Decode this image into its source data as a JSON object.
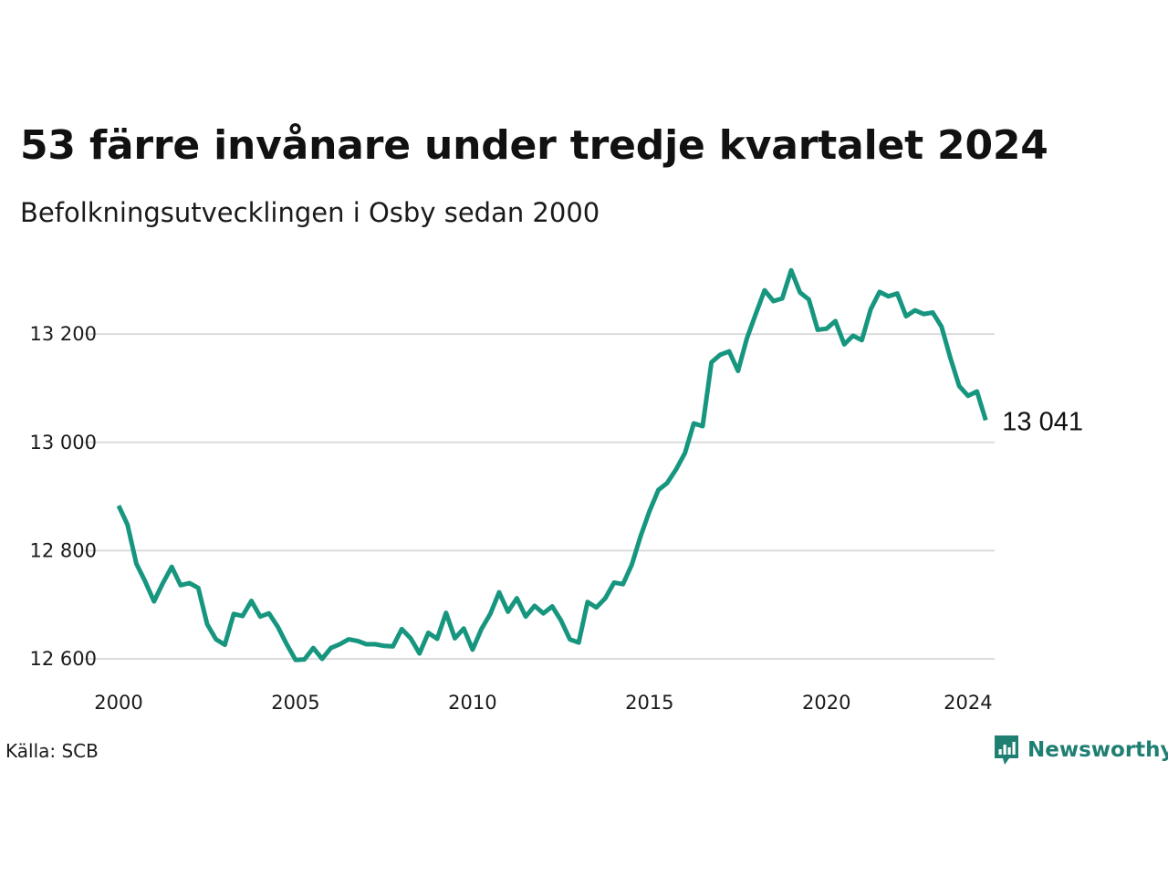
{
  "colors": {
    "line": "#17967f",
    "grid": "#dcdcdc",
    "brand": "#1e7f72"
  },
  "source": "Källa: SCB",
  "brand": {
    "name": "Newsworthy",
    "icon": "newsworthy-logo-icon"
  },
  "chart_data": {
    "type": "line",
    "title": "53 färre invånare under tredje kvartalet 2024",
    "subtitle": "Befolkningsutvecklingen i Osby sedan 2000",
    "xlabel": "",
    "ylabel": "",
    "xlim": [
      2000,
      2024.75
    ],
    "ylim": [
      12600,
      13320
    ],
    "x_ticks": [
      2000,
      2005,
      2010,
      2015,
      2020,
      2024
    ],
    "x_tick_labels": [
      "2000",
      "2005",
      "2010",
      "2015",
      "2020",
      "2024"
    ],
    "y_ticks": [
      12600,
      12800,
      13000,
      13200
    ],
    "y_tick_labels": [
      "12 600",
      "12 800",
      "13 000",
      "13 200"
    ],
    "grid": "horizontal",
    "legend": "none",
    "end_label": "13 041",
    "x": [
      2000.0,
      2000.25,
      2000.5,
      2000.75,
      2001.0,
      2001.25,
      2001.5,
      2001.75,
      2002.0,
      2002.25,
      2002.5,
      2002.75,
      2003.0,
      2003.25,
      2003.5,
      2003.75,
      2004.0,
      2004.25,
      2004.5,
      2004.75,
      2005.0,
      2005.25,
      2005.5,
      2005.75,
      2006.0,
      2006.25,
      2006.5,
      2006.75,
      2007.0,
      2007.25,
      2007.5,
      2007.75,
      2008.0,
      2008.25,
      2008.5,
      2008.75,
      2009.0,
      2009.25,
      2009.5,
      2009.75,
      2010.0,
      2010.25,
      2010.5,
      2010.75,
      2011.0,
      2011.25,
      2011.5,
      2011.75,
      2012.0,
      2012.25,
      2012.5,
      2012.75,
      2013.0,
      2013.25,
      2013.5,
      2013.75,
      2014.0,
      2014.25,
      2014.5,
      2014.75,
      2015.0,
      2015.25,
      2015.5,
      2015.75,
      2016.0,
      2016.25,
      2016.5,
      2016.75,
      2017.0,
      2017.25,
      2017.5,
      2017.75,
      2018.0,
      2018.25,
      2018.5,
      2018.75,
      2019.0,
      2019.25,
      2019.5,
      2019.75,
      2020.0,
      2020.25,
      2020.5,
      2020.75,
      2021.0,
      2021.25,
      2021.5,
      2021.75,
      2022.0,
      2022.25,
      2022.5,
      2022.75,
      2023.0,
      2023.25,
      2023.5,
      2023.75,
      2024.0,
      2024.25,
      2024.5
    ],
    "series": [
      {
        "values": [
          12883,
          12848,
          12776,
          12743,
          12706,
          12740,
          12770,
          12736,
          12740,
          12731,
          12664,
          12636,
          12626,
          12683,
          12679,
          12707,
          12678,
          12684,
          12659,
          12627,
          12598,
          12599,
          12620,
          12600,
          12620,
          12627,
          12636,
          12633,
          12627,
          12627,
          12624,
          12623,
          12655,
          12638,
          12610,
          12648,
          12637,
          12685,
          12638,
          12656,
          12617,
          12655,
          12683,
          12723,
          12687,
          12712,
          12678,
          12698,
          12684,
          12697,
          12671,
          12636,
          12630,
          12705,
          12695,
          12712,
          12741,
          12738,
          12774,
          12827,
          12873,
          12912,
          12925,
          12950,
          12980,
          13035,
          13030,
          13148,
          13162,
          13168,
          13132,
          13192,
          13237,
          13281,
          13261,
          13266,
          13318,
          13277,
          13264,
          13208,
          13210,
          13224,
          13181,
          13197,
          13189,
          13246,
          13278,
          13270,
          13275,
          13233,
          13244,
          13237,
          13240,
          13214,
          13156,
          13104,
          13086,
          13094,
          13041
        ]
      }
    ]
  }
}
